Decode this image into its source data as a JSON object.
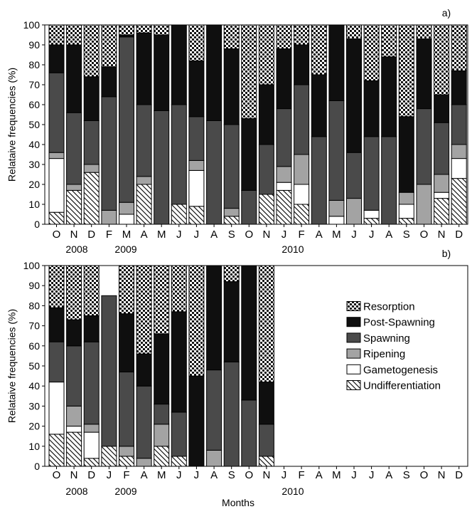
{
  "chart_data": [
    {
      "type": "bar",
      "stacked": true,
      "panel_label": "a)",
      "xlabel": "",
      "ylabel": "Relataive frequencies (%)",
      "ylim": [
        0,
        100
      ],
      "yticks": [
        0,
        10,
        20,
        30,
        40,
        50,
        60,
        70,
        80,
        90,
        100
      ],
      "grid": false,
      "categories": [
        "O",
        "N",
        "D",
        "F",
        "M",
        "A",
        "M",
        "J",
        "J",
        "A",
        "S",
        "O",
        "N",
        "J",
        "F",
        "A",
        "M",
        "J",
        "J",
        "A",
        "S",
        "O",
        "N",
        "D"
      ],
      "year_labels": [
        "2008",
        "2009",
        "2010"
      ],
      "series": [
        {
          "name": "Undifferentiation",
          "values": [
            6,
            17,
            26,
            0,
            0,
            20,
            0,
            10,
            9,
            0,
            4,
            0,
            15,
            17,
            10,
            0,
            0,
            0,
            3,
            0,
            3,
            0,
            13,
            23
          ]
        },
        {
          "name": "Gametogenesis",
          "values": [
            27,
            0,
            0,
            0,
            5,
            0,
            0,
            0,
            18,
            0,
            0,
            0,
            0,
            4,
            10,
            0,
            4,
            0,
            4,
            0,
            7,
            0,
            3,
            10
          ]
        },
        {
          "name": "Ripening",
          "values": [
            3,
            3,
            4,
            7,
            6,
            4,
            0,
            0,
            5,
            0,
            4,
            0,
            0,
            8,
            15,
            0,
            8,
            13,
            0,
            0,
            6,
            20,
            9,
            7
          ]
        },
        {
          "name": "Spawning",
          "values": [
            40,
            36,
            22,
            57,
            83,
            36,
            57,
            50,
            22,
            52,
            42,
            17,
            25,
            29,
            35,
            44,
            50,
            23,
            37,
            44,
            0,
            38,
            26,
            20
          ]
        },
        {
          "name": "Post-Spawning",
          "values": [
            14,
            34,
            22,
            15,
            1,
            36,
            38,
            40,
            28,
            48,
            38,
            36,
            30,
            30,
            20,
            31,
            38,
            57,
            28,
            40,
            38,
            35,
            14,
            17
          ]
        },
        {
          "name": "Resorption",
          "values": [
            10,
            10,
            26,
            21,
            5,
            4,
            5,
            0,
            18,
            0,
            12,
            47,
            30,
            12,
            10,
            25,
            0,
            7,
            28,
            16,
            46,
            7,
            35,
            23
          ]
        }
      ]
    },
    {
      "type": "bar",
      "stacked": true,
      "panel_label": "b)",
      "xlabel": "Months",
      "ylabel": "Relataive frequencies (%)",
      "ylim": [
        0,
        100
      ],
      "yticks": [
        0,
        10,
        20,
        30,
        40,
        50,
        60,
        70,
        80,
        90,
        100
      ],
      "grid": false,
      "legend": "right",
      "categories": [
        "O",
        "N",
        "D",
        "J",
        "F",
        "A",
        "M",
        "J",
        "J",
        "A",
        "S",
        "O",
        "N",
        "J",
        "F",
        "A",
        "M",
        "J",
        "J",
        "A",
        "S",
        "O",
        "N",
        "D"
      ],
      "year_labels": [
        "2008",
        "2009",
        "2010"
      ],
      "series": [
        {
          "name": "Undifferentiation",
          "values": [
            16,
            17,
            4,
            10,
            5,
            0,
            10,
            5,
            0,
            0,
            0,
            0,
            5,
            null,
            null,
            null,
            null,
            null,
            null,
            null,
            null,
            null,
            null,
            null
          ]
        },
        {
          "name": "Gametogenesis",
          "values": [
            26,
            3,
            13,
            0,
            0,
            0,
            0,
            0,
            0,
            0,
            0,
            0,
            0,
            null,
            null,
            null,
            null,
            null,
            null,
            null,
            null,
            null,
            null,
            null
          ]
        },
        {
          "name": "Ripening",
          "values": [
            0,
            10,
            4,
            0,
            5,
            4,
            11,
            0,
            0,
            8,
            0,
            0,
            0,
            null,
            null,
            null,
            null,
            null,
            null,
            null,
            null,
            null,
            null,
            null
          ]
        },
        {
          "name": "Spawning",
          "values": [
            20,
            30,
            41,
            75,
            37,
            36,
            10,
            22,
            0,
            40,
            52,
            33,
            16,
            null,
            null,
            null,
            null,
            null,
            null,
            null,
            null,
            null,
            null,
            null
          ]
        },
        {
          "name": "Post-Spawning",
          "values": [
            17,
            13,
            13,
            0,
            29,
            16,
            35,
            50,
            45,
            52,
            40,
            67,
            21,
            null,
            null,
            null,
            null,
            null,
            null,
            null,
            null,
            null,
            null,
            null
          ]
        },
        {
          "name": "Resorption",
          "values": [
            21,
            27,
            25,
            0,
            24,
            44,
            34,
            23,
            55,
            0,
            8,
            0,
            58,
            null,
            null,
            null,
            null,
            null,
            null,
            null,
            null,
            null,
            null,
            null
          ]
        }
      ]
    }
  ]
}
